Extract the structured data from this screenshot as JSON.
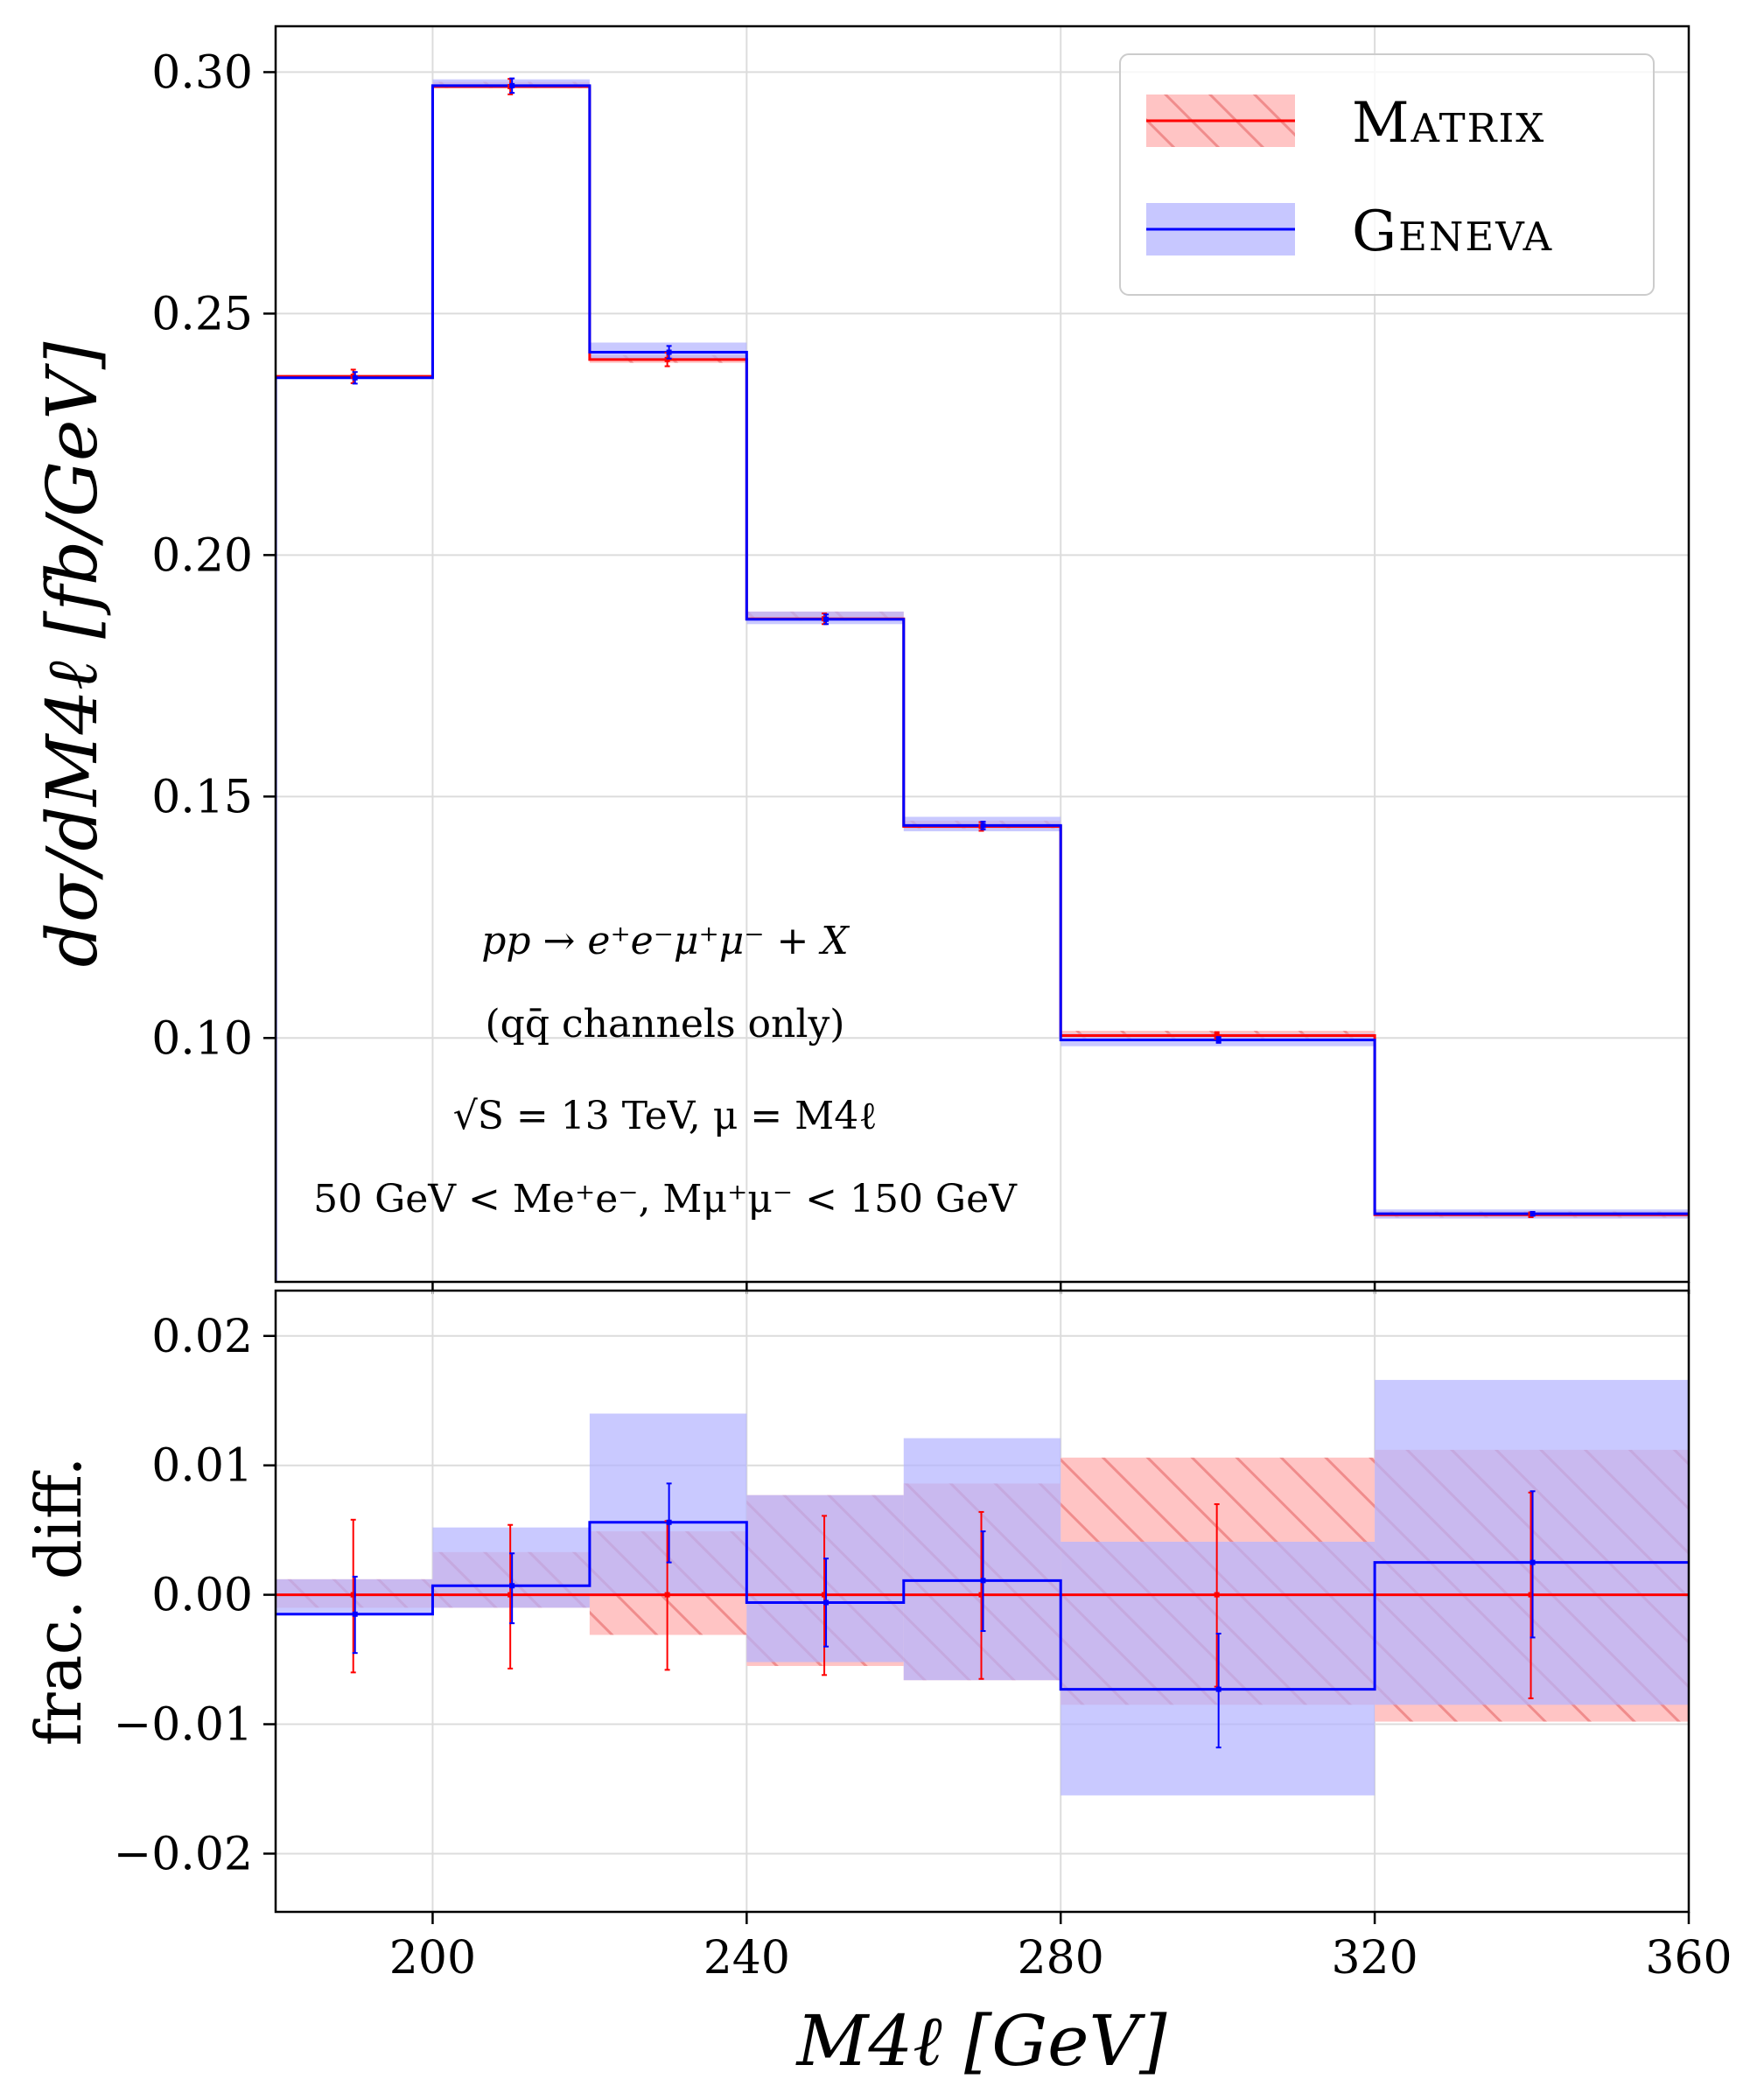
{
  "chart_data": [
    {
      "type": "line",
      "panel": "main",
      "ylabel": "dσ/dM4ℓ [fb/GeV]",
      "xlim": [
        180,
        360
      ],
      "ylim": [
        0.0495,
        0.3095
      ],
      "xticks": [
        200,
        240,
        280,
        320,
        360
      ],
      "yticks": [
        0.1,
        0.15,
        0.2,
        0.25,
        0.3
      ],
      "ytick_labels": [
        "0.10",
        "0.15",
        "0.20",
        "0.25",
        "0.30"
      ],
      "grid": true,
      "legend_position": "top-right",
      "bin_edges": [
        180,
        200,
        220,
        240,
        260,
        280,
        320,
        360
      ],
      "bin_centers": [
        190,
        210,
        230,
        250,
        270,
        300,
        340
      ],
      "series": [
        {
          "name": "Matrix",
          "color": "#ff0000",
          "band_color": "#ff9c9c",
          "hatched": true,
          "values": [
            0.237,
            0.297,
            0.2405,
            0.1868,
            0.1438,
            0.1005,
            0.0634
          ],
          "band_low": [
            0.2367,
            0.2967,
            0.2398,
            0.1864,
            0.1433,
            0.0996,
            0.0628
          ],
          "band_high": [
            0.2373,
            0.298,
            0.2414,
            0.1883,
            0.145,
            0.1015,
            0.0641
          ],
          "err": [
            0.0014,
            0.0016,
            0.0014,
            0.0011,
            0.0009,
            0.0007,
            0.0005
          ]
        },
        {
          "name": "Geneva",
          "color": "#0000ff",
          "band_color": "#b4b4ff",
          "hatched": false,
          "values": [
            0.2367,
            0.2972,
            0.242,
            0.1867,
            0.144,
            0.0996,
            0.0636
          ],
          "band_low": [
            0.2366,
            0.2968,
            0.2403,
            0.1857,
            0.1428,
            0.0983,
            0.0626
          ],
          "band_high": [
            0.2373,
            0.2985,
            0.244,
            0.1883,
            0.1458,
            0.1009,
            0.0645
          ],
          "err": [
            0.0012,
            0.0015,
            0.0013,
            0.001,
            0.0008,
            0.0006,
            0.0004
          ]
        }
      ]
    },
    {
      "type": "line",
      "panel": "ratio",
      "xlabel": "M4ℓ [GeV]",
      "ylabel": "frac. diff.",
      "xlim": [
        180,
        360
      ],
      "ylim": [
        -0.0245,
        0.0235
      ],
      "xticks": [
        200,
        240,
        280,
        320,
        360
      ],
      "yticks": [
        -0.02,
        -0.01,
        0.0,
        0.01,
        0.02
      ],
      "ytick_labels": [
        "−0.02",
        "−0.01",
        "0.00",
        "0.01",
        "0.02"
      ],
      "grid": true,
      "series": [
        {
          "name": "Matrix",
          "color": "#ff0000",
          "values": [
            0,
            0,
            0,
            0,
            0,
            0,
            0
          ],
          "band_low": [
            -0.001,
            -0.001,
            -0.0031,
            -0.0055,
            -0.0066,
            -0.0085,
            -0.0098
          ],
          "band_high": [
            0.0012,
            0.0033,
            0.0049,
            0.0077,
            0.0086,
            0.0106,
            0.0112
          ],
          "err_low": [
            -0.006,
            -0.0057,
            -0.0058,
            -0.0062,
            -0.0065,
            -0.0071,
            -0.008
          ],
          "err_high": [
            0.0058,
            0.0054,
            0.0057,
            0.0061,
            0.0064,
            0.007,
            0.0079
          ]
        },
        {
          "name": "Geneva",
          "color": "#0000ff",
          "values": [
            -0.0015,
            0.0007,
            0.0056,
            -0.0006,
            0.0011,
            -0.0073,
            0.0025
          ],
          "band_low": [
            -0.0015,
            -0.001,
            -0.0001,
            -0.0052,
            -0.0066,
            -0.0155,
            -0.0085
          ],
          "band_high": [
            0.0012,
            0.0052,
            0.014,
            0.0077,
            0.0121,
            0.0041,
            0.0166
          ],
          "err_low": [
            -0.0045,
            -0.0022,
            0.0025,
            -0.004,
            -0.0028,
            -0.0118,
            -0.0033
          ],
          "err_high": [
            0.0014,
            0.0032,
            0.0086,
            0.0028,
            0.0049,
            -0.003,
            0.008
          ]
        }
      ]
    }
  ],
  "legend": {
    "entries": [
      "Matrix",
      "Geneva"
    ]
  },
  "annotation": {
    "line1": "pp → e⁺e⁻μ⁺μ⁻ + X",
    "line2": "(qq̄ channels only)",
    "line3": "√S = 13 TeV, μ = M4ℓ",
    "line4": "50 GeV < Me⁺e⁻, Mμ⁺μ⁻ < 150 GeV"
  },
  "colors": {
    "matrix": "#ff0000",
    "geneva": "#0000ff",
    "grid": "#dcdcdc"
  }
}
